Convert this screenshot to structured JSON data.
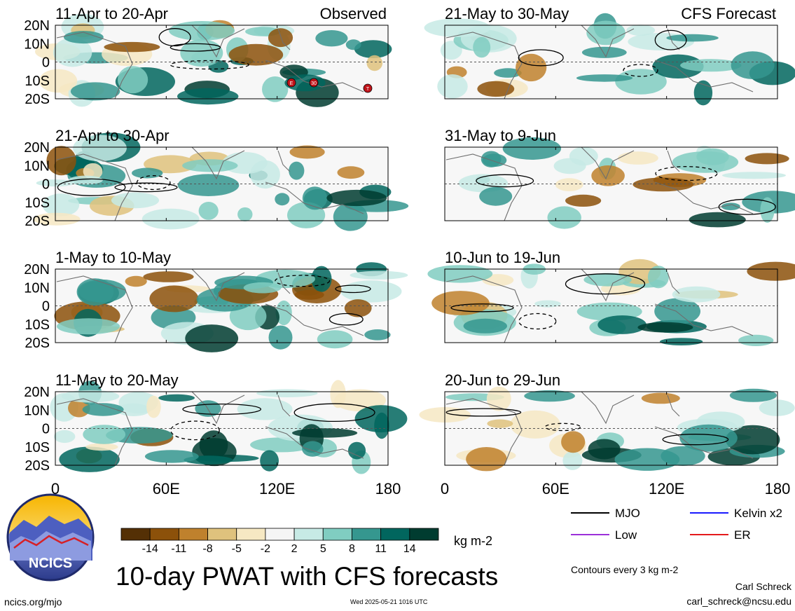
{
  "chart_data": {
    "type": "heatmap",
    "title": "10-day PWAT with CFS forecasts",
    "units": "kg m-2",
    "contour_note": "Contours every 3 kg m-2",
    "column_headers": [
      "Observed",
      "CFS Forecast"
    ],
    "x_ticks": [
      "0",
      "60E",
      "120E",
      "180"
    ],
    "x_values": [
      0,
      60,
      120,
      180
    ],
    "y_ticks": [
      "20N",
      "10N",
      "0",
      "10S",
      "20S"
    ],
    "y_values": [
      20,
      10,
      0,
      -10,
      -20
    ],
    "xlim": [
      0,
      180
    ],
    "ylim": [
      -20,
      20
    ],
    "colorbar": {
      "labels": [
        "-14",
        "-11",
        "-8",
        "-5",
        "-2",
        "2",
        "5",
        "8",
        "11",
        "14"
      ],
      "colors": [
        "#543005",
        "#8c510a",
        "#bf812d",
        "#dfc27d",
        "#f6e8c3",
        "#f5f5f5",
        "#c7eae5",
        "#80cdc1",
        "#35978f",
        "#01665e",
        "#003c30"
      ]
    },
    "panels": [
      {
        "column": 0,
        "row": 0,
        "period": "11-Apr to 20-Apr",
        "kind": "Observed",
        "storms": [
          "E",
          "30",
          "T"
        ]
      },
      {
        "column": 0,
        "row": 1,
        "period": "21-Apr to 30-Apr",
        "kind": "Observed",
        "storms": []
      },
      {
        "column": 0,
        "row": 2,
        "period": "1-May to 10-May",
        "kind": "Observed",
        "storms": []
      },
      {
        "column": 0,
        "row": 3,
        "period": "11-May to 20-May",
        "kind": "Observed",
        "storms": []
      },
      {
        "column": 1,
        "row": 0,
        "period": "21-May to 30-May",
        "kind": "CFS Forecast",
        "storms": []
      },
      {
        "column": 1,
        "row": 1,
        "period": "31-May to 9-Jun",
        "kind": "CFS Forecast",
        "storms": []
      },
      {
        "column": 1,
        "row": 2,
        "period": "10-Jun to 19-Jun",
        "kind": "CFS Forecast",
        "storms": []
      },
      {
        "column": 1,
        "row": 3,
        "period": "20-Jun to 29-Jun",
        "kind": "CFS Forecast",
        "storms": []
      }
    ],
    "contour_legend": [
      {
        "label": "MJO",
        "color": "#000000"
      },
      {
        "label": "Kelvin x2",
        "color": "#1a1aff"
      },
      {
        "label": "Low",
        "color": "#9b30d9"
      },
      {
        "label": "ER",
        "color": "#e41a1c"
      }
    ]
  },
  "footer": {
    "logo_text": "NCICS",
    "website": "ncics.org/mjo",
    "timestamp": "Wed 2025-05-21 1016 UTC",
    "author": "Carl Schreck",
    "email": "carl_schreck@ncsu.edu"
  }
}
